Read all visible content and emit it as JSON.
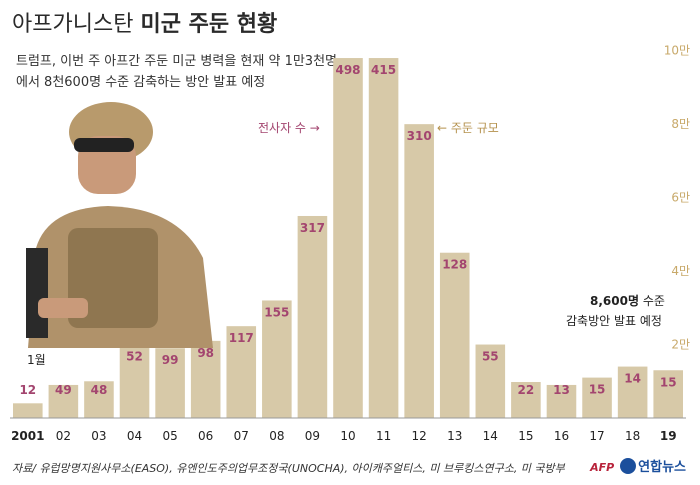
{
  "title_light": "아프가니스탄",
  "title_bold": "미군 주둔 현황",
  "subtitle_line1": "트럼프, 이번 주 아프간 주둔 미군 병력을 현재 약 1만3천명",
  "subtitle_line2": "에서 8천600명 수준 감축하는 방안 발표 예정",
  "source": "자료/ 유럽망명지원사무소(EASO), 유엔인도주의업무조정국(UNOCHA), 아이캐주얼티스, 미 브루킹스연구소, 미 국방부",
  "logo_afp": "AFP",
  "logo_text": "연합뉴스",
  "annotations": {
    "casualties_label": "전사자 수",
    "troops_label": "주둔 규모",
    "reduction_value": "8,600명",
    "reduction_unit": " 수준",
    "reduction_line2": "감축방안 발표 예정",
    "month_label": "1월"
  },
  "colors": {
    "troop_bar": "#d7c9a8",
    "casualty": "#a3456f",
    "axis_label": "#c8a96a",
    "text": "#333333"
  },
  "chart_data": {
    "type": "bar",
    "title": "아프가니스탄 미군 주둔 현황",
    "x_tick_labels": [
      "2001",
      "02",
      "03",
      "04",
      "05",
      "06",
      "07",
      "08",
      "09",
      "10",
      "11",
      "12",
      "13",
      "14",
      "15",
      "16",
      "17",
      "18",
      "19"
    ],
    "y_tick_labels": [
      "2만",
      "4만",
      "6만",
      "8만",
      "10만"
    ],
    "ylim": [
      0,
      104000
    ],
    "series": [
      {
        "name": "주둔 규모",
        "type": "bar",
        "x": [
          "2001",
          "02",
          "03",
          "04",
          "05",
          "06",
          "07",
          "08",
          "09",
          "10",
          "11",
          "12",
          "13",
          "14",
          "15",
          "16",
          "17",
          "18",
          "19"
        ],
        "values": [
          4000,
          9000,
          10000,
          20000,
          19000,
          21000,
          25000,
          32000,
          55000,
          98000,
          98000,
          80000,
          45000,
          20000,
          9800,
          9000,
          11000,
          14000,
          13000
        ]
      },
      {
        "name": "전사자 수",
        "x": [
          "2001",
          "02",
          "03",
          "04",
          "05",
          "06",
          "07",
          "08",
          "09",
          "10",
          "11",
          "12",
          "13",
          "14",
          "15",
          "16",
          "17",
          "18",
          "19"
        ],
        "values": [
          12,
          49,
          48,
          52,
          99,
          98,
          117,
          155,
          317,
          498,
          415,
          310,
          128,
          55,
          22,
          13,
          15,
          14,
          15
        ]
      }
    ],
    "planned_level": 8600,
    "grid": false,
    "legend": "annotations"
  }
}
